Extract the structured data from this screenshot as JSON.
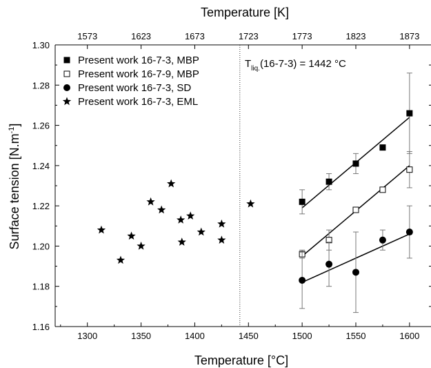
{
  "chart_data": {
    "type": "scatter",
    "xlabel": "Temperature [°C]",
    "ylabel": "Surface tension [N.m",
    "ylabel_sup": "-1",
    "ylabel_end": "]",
    "x2label": "Temperature [K]",
    "xlim": [
      1270,
      1620
    ],
    "ylim": [
      1.16,
      1.3
    ],
    "x_ticks": [
      1300,
      1350,
      1400,
      1450,
      1500,
      1550,
      1600
    ],
    "y_ticks": [
      "1.16",
      "1.18",
      "1.20",
      "1.22",
      "1.24",
      "1.26",
      "1.28",
      "1.30"
    ],
    "x2_ticks": [
      1573,
      1623,
      1673,
      1723,
      1773,
      1823,
      1873
    ],
    "x2_offset": 273,
    "liquidus_x": 1442,
    "annotation": {
      "prefix": "T",
      "subscript": "liq.",
      "suffix": "(16-7-3) = 1442 °C"
    },
    "series": [
      {
        "name": "Present work 16-7-3, MBP",
        "marker": "square-filled",
        "points": [
          {
            "x": 1500,
            "y": 1.222,
            "yerr": 0.006
          },
          {
            "x": 1525,
            "y": 1.232,
            "yerr": 0.004
          },
          {
            "x": 1550,
            "y": 1.241,
            "yerr": 0.005
          },
          {
            "x": 1575,
            "y": 1.249,
            "yerr": 0
          },
          {
            "x": 1600,
            "y": 1.266,
            "yerr": 0.02
          }
        ],
        "fit": [
          [
            1500,
            1.219
          ],
          [
            1600,
            1.264
          ]
        ]
      },
      {
        "name": "Present work 16-7-9, MBP",
        "marker": "square-open",
        "points": [
          {
            "x": 1500,
            "y": 1.196,
            "yerr": 0.002
          },
          {
            "x": 1525,
            "y": 1.203,
            "yerr": 0.005
          },
          {
            "x": 1550,
            "y": 1.218,
            "yerr": 0.001
          },
          {
            "x": 1575,
            "y": 1.228,
            "yerr": 0.001
          },
          {
            "x": 1600,
            "y": 1.238,
            "yerr": 0.009
          }
        ],
        "fit": [
          [
            1500,
            1.195
          ],
          [
            1600,
            1.24
          ]
        ]
      },
      {
        "name": "Present work 16-7-3, SD",
        "marker": "circle-filled",
        "points": [
          {
            "x": 1500,
            "y": 1.183,
            "yerr": 0.014
          },
          {
            "x": 1525,
            "y": 1.191,
            "yerr": 0.011
          },
          {
            "x": 1550,
            "y": 1.187,
            "yerr": 0.02
          },
          {
            "x": 1575,
            "y": 1.203,
            "yerr": 0.005
          },
          {
            "x": 1600,
            "y": 1.207,
            "yerr": 0.013
          }
        ],
        "fit": [
          [
            1500,
            1.182
          ],
          [
            1600,
            1.206
          ]
        ]
      },
      {
        "name": "Present work 16-7-3, EML",
        "marker": "star",
        "points": [
          {
            "x": 1313,
            "y": 1.208
          },
          {
            "x": 1331,
            "y": 1.193
          },
          {
            "x": 1341,
            "y": 1.205
          },
          {
            "x": 1350,
            "y": 1.2
          },
          {
            "x": 1359,
            "y": 1.222
          },
          {
            "x": 1369,
            "y": 1.218
          },
          {
            "x": 1378,
            "y": 1.231
          },
          {
            "x": 1387,
            "y": 1.213
          },
          {
            "x": 1388,
            "y": 1.202
          },
          {
            "x": 1396,
            "y": 1.215
          },
          {
            "x": 1406,
            "y": 1.207
          },
          {
            "x": 1425,
            "y": 1.211
          },
          {
            "x": 1425,
            "y": 1.203
          },
          {
            "x": 1452,
            "y": 1.221
          }
        ]
      }
    ]
  }
}
